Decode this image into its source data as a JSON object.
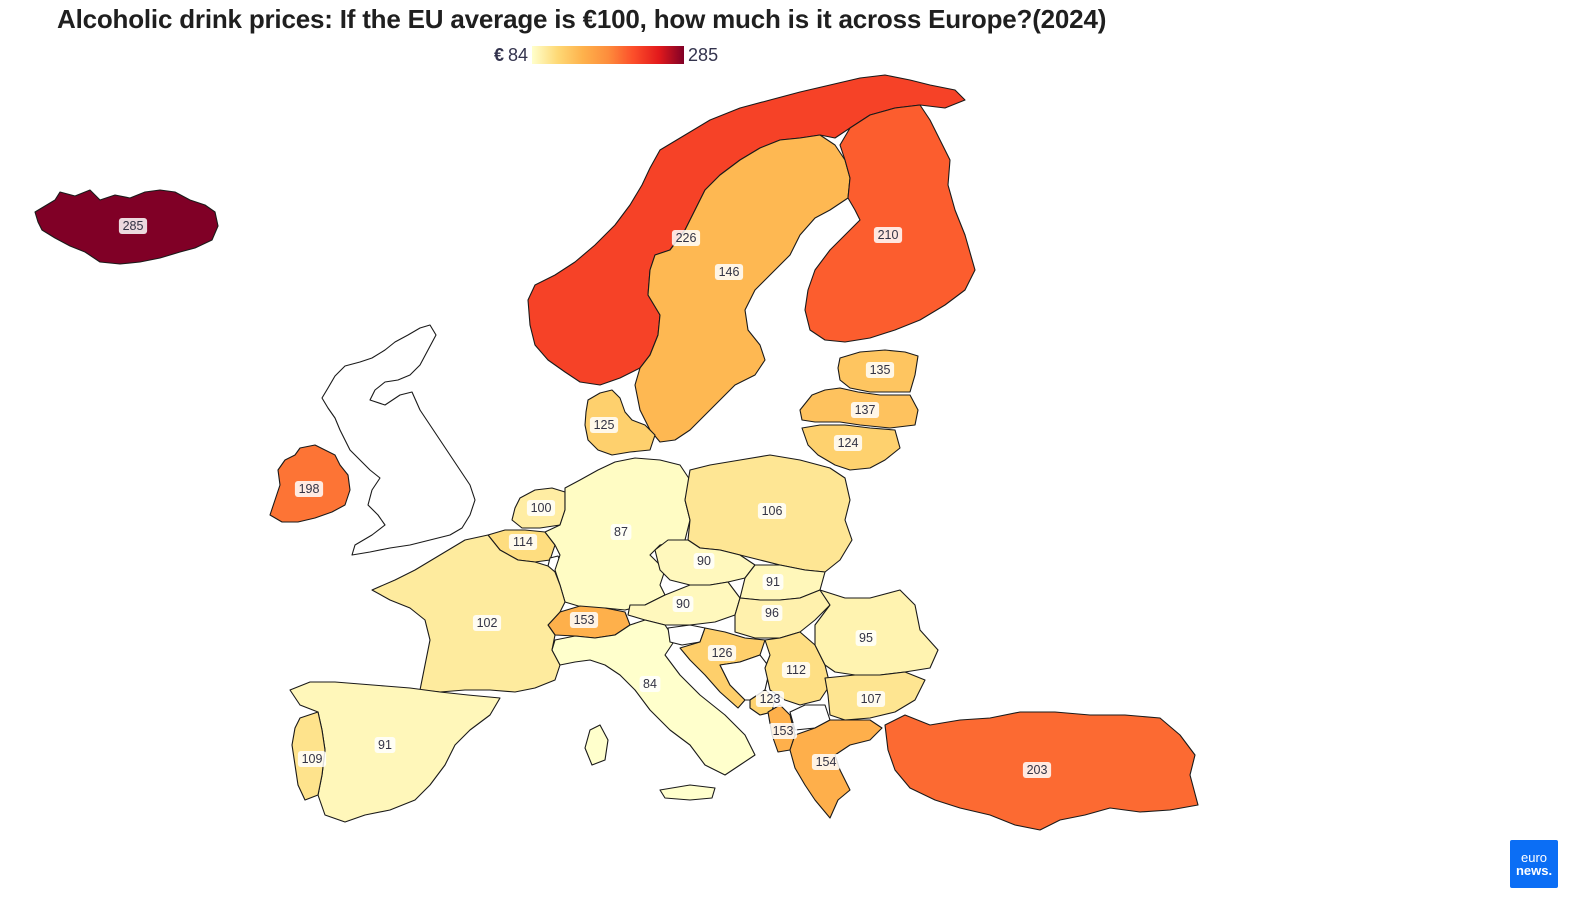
{
  "title": "Alcoholic drink prices: If the EU average is €100, how much is it across Europe?(2024)",
  "legend": {
    "currency": "€",
    "min": "84",
    "max": "285",
    "colors": [
      "#ffffcc",
      "#fed976",
      "#feb24c",
      "#fd8d3c",
      "#fc4e2a",
      "#e31a1c",
      "#800026"
    ]
  },
  "logo": {
    "line1": "euro",
    "line2": "news."
  },
  "countries": [
    {
      "id": "iceland",
      "value": 285,
      "label": "285"
    },
    {
      "id": "norway",
      "value": 226,
      "label": "226"
    },
    {
      "id": "finland",
      "value": 210,
      "label": "210"
    },
    {
      "id": "turkey",
      "value": 203,
      "label": "203"
    },
    {
      "id": "ireland",
      "value": 198,
      "label": "198"
    },
    {
      "id": "greece",
      "value": 154,
      "label": "154"
    },
    {
      "id": "switzerland",
      "value": 153,
      "label": "153"
    },
    {
      "id": "albania",
      "value": 153,
      "label": "153"
    },
    {
      "id": "sweden",
      "value": 146,
      "label": "146"
    },
    {
      "id": "latvia",
      "value": 137,
      "label": "137"
    },
    {
      "id": "estonia",
      "value": 135,
      "label": "135"
    },
    {
      "id": "croatia",
      "value": 126,
      "label": "126"
    },
    {
      "id": "denmark",
      "value": 125,
      "label": "125"
    },
    {
      "id": "lithuania",
      "value": 124,
      "label": "124"
    },
    {
      "id": "montenegro",
      "value": 123,
      "label": "123"
    },
    {
      "id": "belgium",
      "value": 114,
      "label": "114"
    },
    {
      "id": "serbia",
      "value": 112,
      "label": "112"
    },
    {
      "id": "portugal",
      "value": 109,
      "label": "109"
    },
    {
      "id": "bulgaria",
      "value": 107,
      "label": "107"
    },
    {
      "id": "poland",
      "value": 106,
      "label": "106"
    },
    {
      "id": "france",
      "value": 102,
      "label": "102"
    },
    {
      "id": "netherlands",
      "value": 100,
      "label": "100"
    },
    {
      "id": "hungary",
      "value": 96,
      "label": "96"
    },
    {
      "id": "romania",
      "value": 95,
      "label": "95"
    },
    {
      "id": "spain",
      "value": 91,
      "label": "91"
    },
    {
      "id": "slovakia",
      "value": 91,
      "label": "91"
    },
    {
      "id": "czechia",
      "value": 90,
      "label": "90"
    },
    {
      "id": "austria",
      "value": 90,
      "label": "90"
    },
    {
      "id": "germany",
      "value": 87,
      "label": "87"
    },
    {
      "id": "italy",
      "value": 84,
      "label": "84"
    },
    {
      "id": "bosnia",
      "value": null,
      "label": ""
    },
    {
      "id": "slovenia",
      "value": null,
      "label": ""
    },
    {
      "id": "north-macedonia",
      "value": null,
      "label": ""
    },
    {
      "id": "luxembourg",
      "value": null,
      "label": ""
    },
    {
      "id": "uk",
      "value": null,
      "label": ""
    }
  ]
}
